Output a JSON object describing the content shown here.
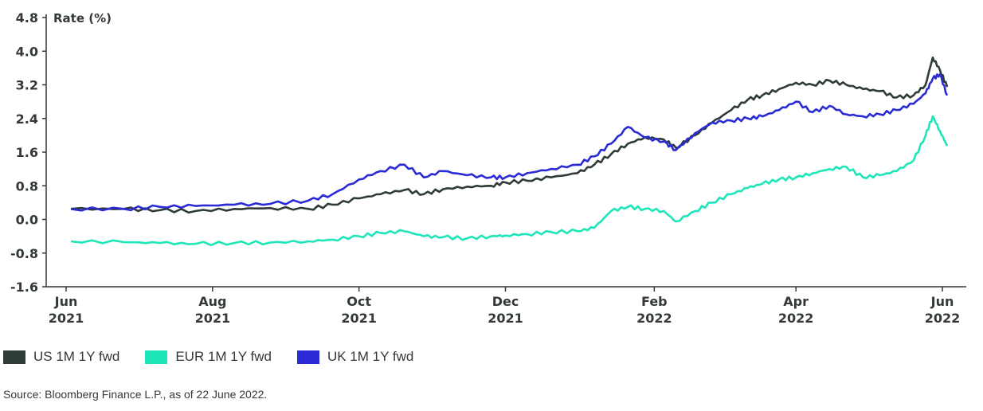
{
  "chart_data": {
    "type": "line",
    "ylabel": "Rate (%)",
    "ylim": [
      -1.6,
      4.8
    ],
    "yticks": [
      "4.8",
      "4.0",
      "3.2",
      "2.4",
      "1.6",
      "0.8",
      "0.0",
      "-0.8",
      "-1.6"
    ],
    "xlim": [
      "2021-06-01",
      "2022-06-01"
    ],
    "xticks": [
      {
        "date": "2021-06-01",
        "month": "Jun",
        "year": "2021"
      },
      {
        "date": "2021-08-01",
        "month": "Aug",
        "year": "2021"
      },
      {
        "date": "2021-10-01",
        "month": "Oct",
        "year": "2021"
      },
      {
        "date": "2021-12-01",
        "month": "Dec",
        "year": "2021"
      },
      {
        "date": "2022-02-01",
        "month": "Feb",
        "year": "2022"
      },
      {
        "date": "2022-04-01",
        "month": "Apr",
        "year": "2022"
      },
      {
        "date": "2022-06-01",
        "month": "Jun",
        "year": "2022"
      }
    ],
    "grid": false,
    "legend_position": "bottom-left",
    "series": [
      {
        "name": "US 1M 1Y fwd",
        "color": "#2f3b36",
        "points": [
          [
            "2021-06-03",
            0.25
          ],
          [
            "2021-06-25",
            0.25
          ],
          [
            "2021-07-10",
            0.22
          ],
          [
            "2021-07-25",
            0.2
          ],
          [
            "2021-08-10",
            0.25
          ],
          [
            "2021-08-25",
            0.27
          ],
          [
            "2021-09-10",
            0.25
          ],
          [
            "2021-09-20",
            0.35
          ],
          [
            "2021-10-01",
            0.5
          ],
          [
            "2021-10-10",
            0.6
          ],
          [
            "2021-10-20",
            0.7
          ],
          [
            "2021-10-28",
            0.6
          ],
          [
            "2021-11-05",
            0.72
          ],
          [
            "2021-11-15",
            0.78
          ],
          [
            "2021-11-25",
            0.8
          ],
          [
            "2021-12-01",
            0.88
          ],
          [
            "2021-12-10",
            0.92
          ],
          [
            "2021-12-20",
            1.0
          ],
          [
            "2021-12-31",
            1.1
          ],
          [
            "2022-01-07",
            1.3
          ],
          [
            "2022-01-14",
            1.55
          ],
          [
            "2022-01-21",
            1.8
          ],
          [
            "2022-01-28",
            1.95
          ],
          [
            "2022-02-05",
            1.9
          ],
          [
            "2022-02-10",
            1.7
          ],
          [
            "2022-02-18",
            2.0
          ],
          [
            "2022-02-25",
            2.3
          ],
          [
            "2022-03-05",
            2.6
          ],
          [
            "2022-03-12",
            2.85
          ],
          [
            "2022-03-18",
            2.95
          ],
          [
            "2022-03-25",
            3.1
          ],
          [
            "2022-04-01",
            3.25
          ],
          [
            "2022-04-08",
            3.2
          ],
          [
            "2022-04-15",
            3.3
          ],
          [
            "2022-04-22",
            3.2
          ],
          [
            "2022-04-29",
            3.1
          ],
          [
            "2022-05-06",
            3.05
          ],
          [
            "2022-05-13",
            2.9
          ],
          [
            "2022-05-20",
            2.95
          ],
          [
            "2022-05-25",
            3.2
          ],
          [
            "2022-05-28",
            3.85
          ],
          [
            "2022-05-31",
            3.55
          ],
          [
            "2022-06-03",
            3.15
          ]
        ]
      },
      {
        "name": "EUR 1M 1Y fwd",
        "color": "#1de6b8",
        "points": [
          [
            "2021-06-03",
            -0.52
          ],
          [
            "2021-06-25",
            -0.54
          ],
          [
            "2021-07-10",
            -0.56
          ],
          [
            "2021-07-25",
            -0.58
          ],
          [
            "2021-08-10",
            -0.56
          ],
          [
            "2021-08-25",
            -0.55
          ],
          [
            "2021-09-10",
            -0.52
          ],
          [
            "2021-09-20",
            -0.48
          ],
          [
            "2021-10-01",
            -0.4
          ],
          [
            "2021-10-10",
            -0.32
          ],
          [
            "2021-10-20",
            -0.28
          ],
          [
            "2021-10-28",
            -0.4
          ],
          [
            "2021-11-05",
            -0.42
          ],
          [
            "2021-11-15",
            -0.45
          ],
          [
            "2021-11-25",
            -0.4
          ],
          [
            "2021-12-01",
            -0.38
          ],
          [
            "2021-12-10",
            -0.35
          ],
          [
            "2021-12-20",
            -0.3
          ],
          [
            "2021-12-31",
            -0.28
          ],
          [
            "2022-01-07",
            -0.2
          ],
          [
            "2022-01-14",
            0.2
          ],
          [
            "2022-01-21",
            0.3
          ],
          [
            "2022-01-28",
            0.25
          ],
          [
            "2022-02-05",
            0.2
          ],
          [
            "2022-02-10",
            -0.05
          ],
          [
            "2022-02-18",
            0.2
          ],
          [
            "2022-02-25",
            0.4
          ],
          [
            "2022-03-05",
            0.6
          ],
          [
            "2022-03-12",
            0.75
          ],
          [
            "2022-03-18",
            0.85
          ],
          [
            "2022-03-25",
            0.95
          ],
          [
            "2022-04-01",
            1.0
          ],
          [
            "2022-04-08",
            1.1
          ],
          [
            "2022-04-15",
            1.2
          ],
          [
            "2022-04-22",
            1.25
          ],
          [
            "2022-04-29",
            1.0
          ],
          [
            "2022-05-06",
            1.05
          ],
          [
            "2022-05-13",
            1.15
          ],
          [
            "2022-05-20",
            1.4
          ],
          [
            "2022-05-25",
            2.0
          ],
          [
            "2022-05-28",
            2.45
          ],
          [
            "2022-05-31",
            2.1
          ],
          [
            "2022-06-03",
            1.75
          ]
        ]
      },
      {
        "name": "UK 1M 1Y fwd",
        "color": "#2b2bd6",
        "points": [
          [
            "2021-06-03",
            0.25
          ],
          [
            "2021-06-25",
            0.25
          ],
          [
            "2021-07-10",
            0.3
          ],
          [
            "2021-07-25",
            0.32
          ],
          [
            "2021-08-10",
            0.35
          ],
          [
            "2021-08-25",
            0.37
          ],
          [
            "2021-09-10",
            0.45
          ],
          [
            "2021-09-20",
            0.6
          ],
          [
            "2021-10-01",
            0.95
          ],
          [
            "2021-10-10",
            1.15
          ],
          [
            "2021-10-20",
            1.3
          ],
          [
            "2021-10-28",
            1.0
          ],
          [
            "2021-11-05",
            1.15
          ],
          [
            "2021-11-15",
            1.05
          ],
          [
            "2021-11-25",
            1.0
          ],
          [
            "2021-12-01",
            1.0
          ],
          [
            "2021-12-10",
            1.1
          ],
          [
            "2021-12-20",
            1.2
          ],
          [
            "2021-12-31",
            1.3
          ],
          [
            "2022-01-07",
            1.5
          ],
          [
            "2022-01-14",
            1.8
          ],
          [
            "2022-01-21",
            2.2
          ],
          [
            "2022-01-28",
            1.95
          ],
          [
            "2022-02-05",
            1.85
          ],
          [
            "2022-02-10",
            1.65
          ],
          [
            "2022-02-18",
            2.05
          ],
          [
            "2022-02-25",
            2.3
          ],
          [
            "2022-03-05",
            2.35
          ],
          [
            "2022-03-12",
            2.4
          ],
          [
            "2022-03-18",
            2.45
          ],
          [
            "2022-03-25",
            2.6
          ],
          [
            "2022-04-01",
            2.8
          ],
          [
            "2022-04-08",
            2.55
          ],
          [
            "2022-04-15",
            2.7
          ],
          [
            "2022-04-22",
            2.5
          ],
          [
            "2022-04-29",
            2.45
          ],
          [
            "2022-05-06",
            2.5
          ],
          [
            "2022-05-13",
            2.6
          ],
          [
            "2022-05-20",
            2.75
          ],
          [
            "2022-05-25",
            3.0
          ],
          [
            "2022-05-28",
            3.35
          ],
          [
            "2022-05-31",
            3.45
          ],
          [
            "2022-06-03",
            2.95
          ]
        ]
      }
    ]
  },
  "source": "Source: Bloomberg Finance L.P., as of 22 June 2022."
}
